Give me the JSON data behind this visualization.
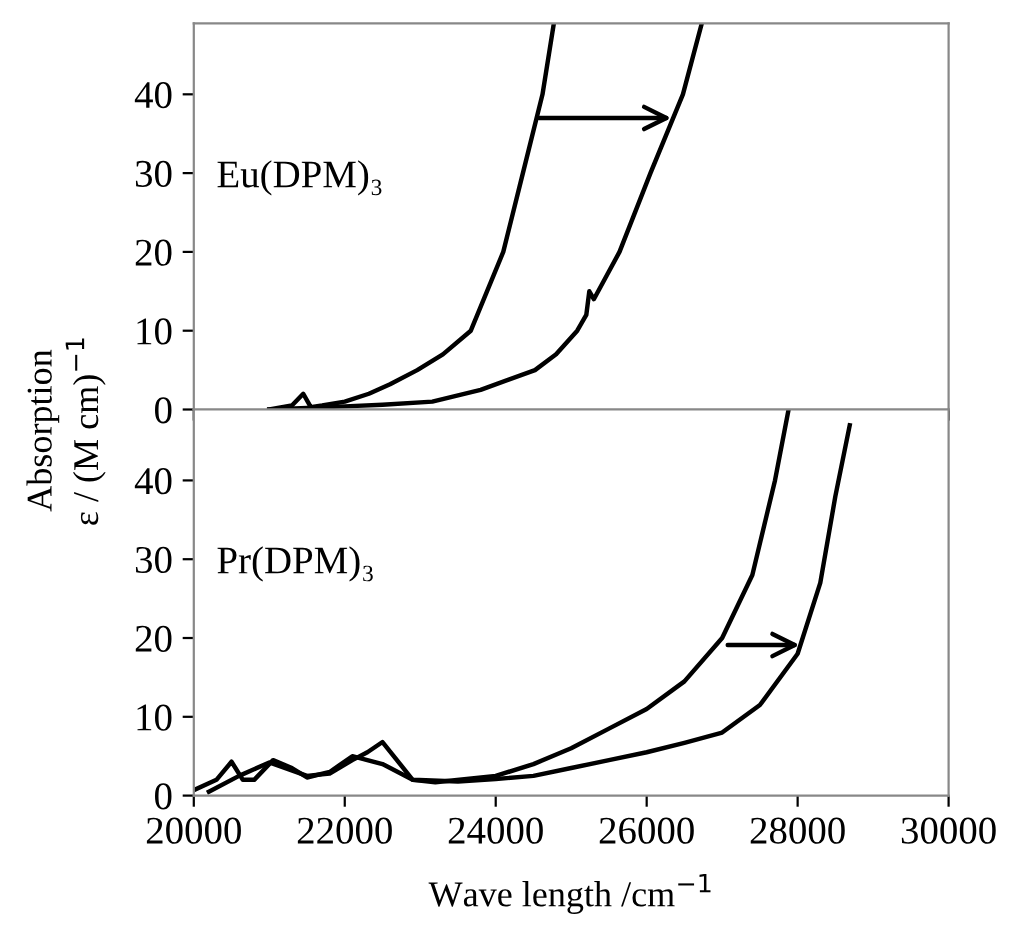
{
  "chart_data": [
    {
      "type": "line",
      "ylabel": "Absorption\nε / (M cm)$^{−1}$",
      "annotations": [
        "Eu(DPM)₃"
      ],
      "xlim": [
        20000,
        30000
      ],
      "xticks": [
        20000,
        22000,
        24000,
        26000,
        28000,
        30000
      ],
      "ylim": [
        0,
        49
      ],
      "yticks": [
        0,
        10,
        20,
        30,
        40
      ],
      "tick_labels": "y",
      "grid": false,
      "legend": false,
      "marker": "none",
      "line_style": "solid",
      "series": [
        {
          "color": "#000000",
          "x": [
            21000,
            21300,
            21450,
            21550,
            21700,
            22000,
            22320,
            22600,
            22960,
            23300,
            23670,
            24100,
            24360,
            24620,
            24770
          ],
          "values": [
            0,
            0.5,
            2,
            0.3,
            0.5,
            1,
            2,
            3.2,
            5,
            7,
            10,
            20,
            30,
            40,
            49
          ]
        },
        {
          "color": "#000000",
          "x": [
            21000,
            21500,
            22000,
            22500,
            23160,
            23800,
            24520,
            24800,
            25080,
            25200,
            25240,
            25300,
            25640,
            26050,
            26480,
            26730
          ],
          "values": [
            0,
            0.2,
            0.4,
            0.6,
            1,
            2.5,
            5,
            7,
            10,
            12,
            15,
            14,
            20,
            30,
            40,
            49
          ]
        }
      ]
    },
    {
      "type": "line",
      "xlabel": "Wave length /cm$^{−1}$",
      "annotations": [
        "Pr(DPM)₃"
      ],
      "xlim": [
        20000,
        30000
      ],
      "xticks": [
        20000,
        22000,
        24000,
        26000,
        28000,
        30000
      ],
      "ylim": [
        0,
        49
      ],
      "yticks": [
        0,
        10,
        20,
        30,
        40
      ],
      "grid": false,
      "legend": false,
      "marker": "none",
      "line_style": "solid",
      "series": [
        {
          "color": "#000000",
          "x": [
            20000,
            20300,
            20500,
            20650,
            20800,
            21050,
            21300,
            21500,
            21800,
            22100,
            22500,
            22900,
            23200,
            24000,
            24500,
            25000,
            25500,
            26000,
            26500,
            27000,
            27400,
            27700,
            27880
          ],
          "values": [
            0.7,
            2,
            4.3,
            2,
            2,
            4.5,
            3.5,
            2.3,
            3,
            5,
            4,
            2,
            1.7,
            2.5,
            4,
            6,
            8.5,
            11,
            14.5,
            20,
            28,
            40,
            49
          ]
        },
        {
          "color": "#000000",
          "x": [
            20200,
            20600,
            21000,
            21500,
            21800,
            22100,
            22300,
            22500,
            22900,
            23500,
            24000,
            24500,
            25000,
            25500,
            26000,
            26500,
            27000,
            27500,
            28000,
            28300,
            28500,
            28690
          ],
          "values": [
            0.5,
            2.5,
            4.2,
            2.5,
            2.8,
            4.5,
            5.5,
            6.8,
            2,
            1.8,
            2.1,
            2.5,
            3.5,
            4.5,
            5.5,
            6.7,
            8,
            11.5,
            18,
            27,
            38,
            47
          ]
        }
      ]
    }
  ]
}
